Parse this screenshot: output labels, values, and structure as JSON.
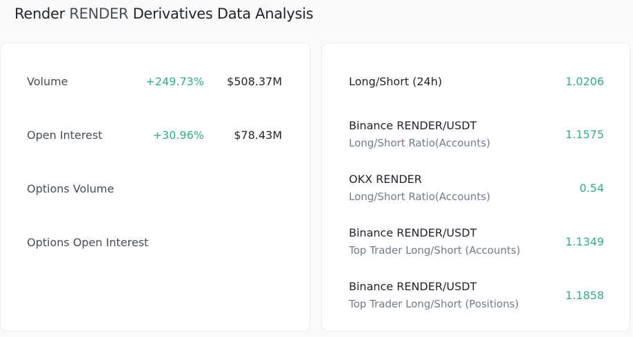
{
  "header": {
    "title_name": "Render",
    "title_symbol": "RENDER",
    "title_rest": "Derivatives Data Analysis"
  },
  "colors": {
    "positive": "#2fae8e",
    "background": "#fafafa",
    "card": "#ffffff"
  },
  "left": {
    "rows": [
      {
        "label": "Volume",
        "change": "+249.73%",
        "value": "$508.37M"
      },
      {
        "label": "Open Interest",
        "change": "+30.96%",
        "value": "$78.43M"
      },
      {
        "label": "Options Volume"
      },
      {
        "label": "Options Open Interest"
      }
    ]
  },
  "right": {
    "rows": [
      {
        "title": "Long/Short (24h)",
        "value": "1.0206"
      },
      {
        "title": "Binance RENDER/USDT",
        "subtitle": "Long/Short Ratio(Accounts)",
        "value": "1.1575"
      },
      {
        "title": "OKX RENDER",
        "subtitle": "Long/Short Ratio(Accounts)",
        "value": "0.54"
      },
      {
        "title": "Binance RENDER/USDT",
        "subtitle": "Top Trader Long/Short (Accounts)",
        "value": "1.1349"
      },
      {
        "title": "Binance RENDER/USDT",
        "subtitle": "Top Trader Long/Short (Positions)",
        "value": "1.1858"
      }
    ]
  }
}
